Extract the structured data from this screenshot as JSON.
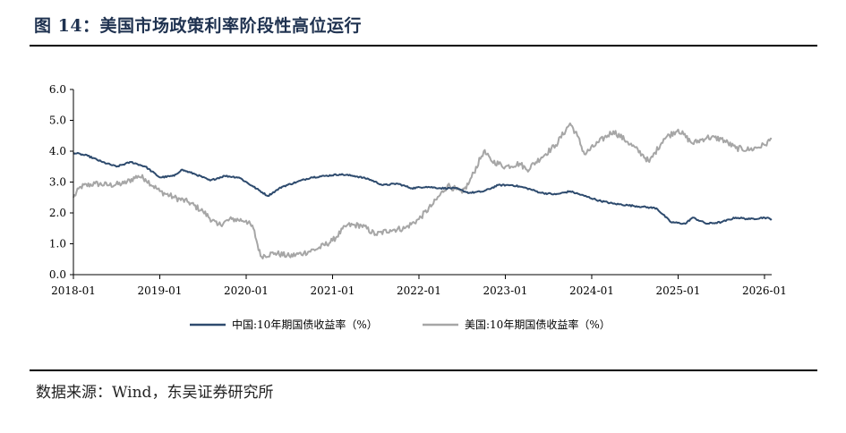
{
  "header": {
    "title": "图 14：美国市场政策利率阶段性高位运行"
  },
  "footer": {
    "source": "数据来源：Wind，东吴证券研究所"
  },
  "chart_data": {
    "type": "line",
    "title": "图 14：美国市场政策利率阶段性高位运行",
    "xlabel": "",
    "ylabel": "",
    "ylim": [
      0,
      6
    ],
    "yticks": [
      "0.0",
      "1.0",
      "2.0",
      "3.0",
      "4.0",
      "5.0",
      "6.0"
    ],
    "xlim": [
      "2018-01",
      "2026-02"
    ],
    "xticks": [
      "2018-01",
      "2019-01",
      "2020-01",
      "2021-01",
      "2022-01",
      "2023-01",
      "2024-01",
      "2025-01",
      "2026-01"
    ],
    "grid": false,
    "legend": "bottom",
    "colors": {
      "china": "#2e4b6e",
      "us": "#a6a6a6"
    },
    "series": [
      {
        "name": "中国:10年期国债收益率（%）",
        "points": [
          [
            "2018-01",
            3.95
          ],
          [
            "2018-03",
            3.85
          ],
          [
            "2018-05",
            3.65
          ],
          [
            "2018-07",
            3.5
          ],
          [
            "2018-09",
            3.65
          ],
          [
            "2018-11",
            3.5
          ],
          [
            "2019-01",
            3.15
          ],
          [
            "2019-03",
            3.2
          ],
          [
            "2019-04",
            3.4
          ],
          [
            "2019-06",
            3.25
          ],
          [
            "2019-08",
            3.05
          ],
          [
            "2019-10",
            3.2
          ],
          [
            "2019-12",
            3.15
          ],
          [
            "2020-02",
            2.85
          ],
          [
            "2020-04",
            2.55
          ],
          [
            "2020-06",
            2.85
          ],
          [
            "2020-08",
            3.0
          ],
          [
            "2020-10",
            3.15
          ],
          [
            "2020-12",
            3.2
          ],
          [
            "2021-02",
            3.25
          ],
          [
            "2021-04",
            3.2
          ],
          [
            "2021-06",
            3.1
          ],
          [
            "2021-08",
            2.9
          ],
          [
            "2021-10",
            2.95
          ],
          [
            "2021-12",
            2.8
          ],
          [
            "2022-02",
            2.85
          ],
          [
            "2022-04",
            2.8
          ],
          [
            "2022-06",
            2.8
          ],
          [
            "2022-08",
            2.65
          ],
          [
            "2022-10",
            2.7
          ],
          [
            "2022-12",
            2.9
          ],
          [
            "2023-02",
            2.9
          ],
          [
            "2023-04",
            2.8
          ],
          [
            "2023-06",
            2.65
          ],
          [
            "2023-08",
            2.6
          ],
          [
            "2023-10",
            2.7
          ],
          [
            "2023-12",
            2.55
          ],
          [
            "2024-02",
            2.4
          ],
          [
            "2024-04",
            2.3
          ],
          [
            "2024-06",
            2.25
          ],
          [
            "2024-08",
            2.2
          ],
          [
            "2024-10",
            2.15
          ],
          [
            "2024-12",
            1.7
          ],
          [
            "2025-02",
            1.65
          ],
          [
            "2025-03",
            1.85
          ],
          [
            "2025-05",
            1.65
          ],
          [
            "2025-07",
            1.7
          ],
          [
            "2025-09",
            1.85
          ],
          [
            "2025-11",
            1.8
          ],
          [
            "2026-01",
            1.85
          ],
          [
            "2026-02",
            1.8
          ]
        ]
      },
      {
        "name": "美国:10年期国债收益率（%）",
        "points": [
          [
            "2018-01",
            2.5
          ],
          [
            "2018-02",
            2.85
          ],
          [
            "2018-04",
            2.95
          ],
          [
            "2018-06",
            2.9
          ],
          [
            "2018-08",
            2.95
          ],
          [
            "2018-10",
            3.2
          ],
          [
            "2018-11",
            3.1
          ],
          [
            "2019-01",
            2.7
          ],
          [
            "2019-03",
            2.5
          ],
          [
            "2019-05",
            2.35
          ],
          [
            "2019-07",
            2.05
          ],
          [
            "2019-09",
            1.6
          ],
          [
            "2019-11",
            1.8
          ],
          [
            "2020-01",
            1.75
          ],
          [
            "2020-02",
            1.5
          ],
          [
            "2020-03",
            0.6
          ],
          [
            "2020-05",
            0.7
          ],
          [
            "2020-07",
            0.6
          ],
          [
            "2020-09",
            0.7
          ],
          [
            "2020-11",
            0.85
          ],
          [
            "2021-01",
            1.1
          ],
          [
            "2021-03",
            1.6
          ],
          [
            "2021-05",
            1.6
          ],
          [
            "2021-07",
            1.3
          ],
          [
            "2021-09",
            1.45
          ],
          [
            "2021-11",
            1.5
          ],
          [
            "2022-01",
            1.8
          ],
          [
            "2022-03",
            2.3
          ],
          [
            "2022-05",
            2.9
          ],
          [
            "2022-07",
            2.65
          ],
          [
            "2022-08",
            3.0
          ],
          [
            "2022-10",
            4.0
          ],
          [
            "2022-11",
            3.7
          ],
          [
            "2023-01",
            3.5
          ],
          [
            "2023-03",
            3.6
          ],
          [
            "2023-04",
            3.4
          ],
          [
            "2023-06",
            3.8
          ],
          [
            "2023-08",
            4.2
          ],
          [
            "2023-10",
            4.9
          ],
          [
            "2023-11",
            4.5
          ],
          [
            "2023-12",
            3.9
          ],
          [
            "2024-02",
            4.3
          ],
          [
            "2024-04",
            4.65
          ],
          [
            "2024-06",
            4.3
          ],
          [
            "2024-08",
            3.9
          ],
          [
            "2024-09",
            3.65
          ],
          [
            "2024-11",
            4.4
          ],
          [
            "2025-01",
            4.7
          ],
          [
            "2025-03",
            4.25
          ],
          [
            "2025-05",
            4.45
          ],
          [
            "2025-07",
            4.4
          ],
          [
            "2025-09",
            4.1
          ],
          [
            "2025-11",
            4.05
          ],
          [
            "2026-01",
            4.2
          ],
          [
            "2026-02",
            4.4
          ]
        ]
      }
    ]
  }
}
